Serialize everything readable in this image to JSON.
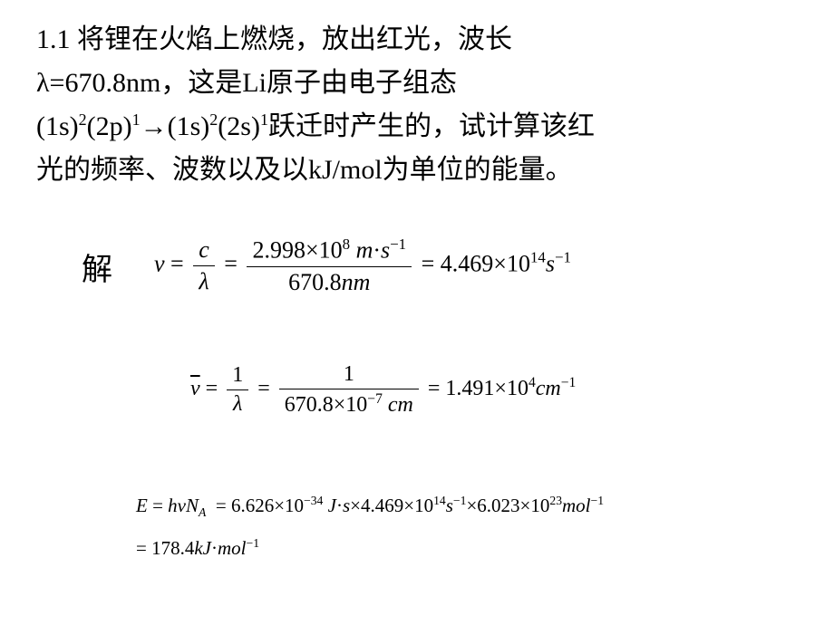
{
  "problem": {
    "line1_prefix": "1.1 将锂在火焰上燃烧，放出红光，波长",
    "line2_prefix": "λ=670.8nm，这是Li原子由电子组态",
    "line3_part1": "(1s)",
    "line3_sup1": "2",
    "line3_part2": "(2p)",
    "line3_sup2": "1",
    "line3_arrow": "→(1s)",
    "line3_sup3": "2",
    "line3_part3": "(2s)",
    "line3_sup4": "1",
    "line3_part4": "跃迁时产生的，试计算该红",
    "line4": "光的频率、波数以及以kJ/mol为单位的能量。"
  },
  "solution_label": "解",
  "eq1": {
    "nu": "ν",
    "eq": " = ",
    "frac1_num": "c",
    "frac1_den": "λ",
    "frac2_num_val": "2.998",
    "frac2_num_times": "×",
    "frac2_num_base": "10",
    "frac2_num_exp": "8",
    "frac2_num_unit1": " m",
    "frac2_num_dot": "·",
    "frac2_num_unit2": "s",
    "frac2_num_exp2": "−1",
    "frac2_den_val": "670.8",
    "frac2_den_unit": "nm",
    "result_val": "4.469",
    "result_times": "×",
    "result_base": "10",
    "result_exp": "14",
    "result_unit": "s",
    "result_unit_exp": "−1"
  },
  "eq2": {
    "nubar": "ν",
    "eq": " = ",
    "frac1_num": "1",
    "frac1_den": "λ",
    "frac2_num": "1",
    "frac2_den_val": "670.8",
    "frac2_den_times": "×",
    "frac2_den_base": "10",
    "frac2_den_exp": "−7",
    "frac2_den_unit": " cm",
    "result_val": "1.491",
    "result_times": "×",
    "result_base": "10",
    "result_exp": "4",
    "result_unit": "cm",
    "result_unit_exp": "−1"
  },
  "eq3": {
    "E": "E",
    "eq": " = ",
    "h": "h",
    "nu": "ν",
    "N": "N",
    "A": "A",
    "val1": "6.626",
    "times": "×",
    "base1": "10",
    "exp1": "−34",
    "unit1a": " J",
    "dot": "·",
    "unit1b": "s",
    "val2": "4.469",
    "base2": "10",
    "exp2": "14",
    "unit2": "s",
    "unit2exp": "−1",
    "val3": "6.023",
    "base3": "10",
    "exp3": "23",
    "unit3": "mol",
    "unit3exp": "−1",
    "result_val": "178.4",
    "result_unit1": "kJ",
    "result_unit2": "mol",
    "result_unit_exp": "−1"
  },
  "style": {
    "background": "#ffffff",
    "text_color": "#000000",
    "problem_fontsize": 30,
    "eq_fontsize": 26,
    "eq2_fontsize": 24,
    "eq3_fontsize": 21
  }
}
